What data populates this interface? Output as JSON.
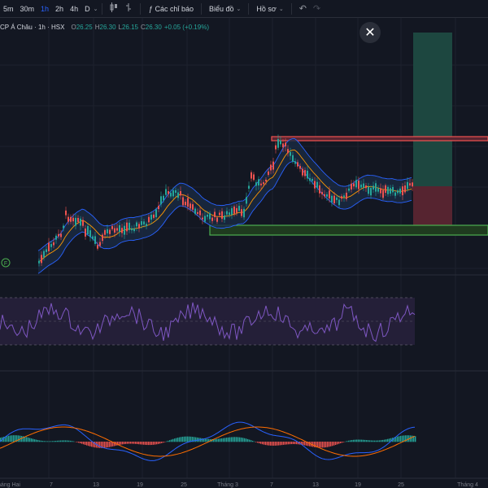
{
  "toolbar": {
    "timeframes": [
      "5m",
      "30m",
      "1h",
      "2h",
      "4h",
      "D"
    ],
    "active_timeframe": "1h",
    "indicators_label": "Các chỉ báo",
    "chart_type_label": "Biểu đồ",
    "profile_label": "Hồ sơ",
    "icons": [
      "candle-style-icon",
      "bar-style-icon",
      "indicators-icon",
      "undo-icon",
      "redo-icon"
    ]
  },
  "legend": {
    "symbol": "CP Á Châu · 1h · HSX",
    "open_key": "O",
    "open": "26.25",
    "high_key": "H",
    "high": "26.30",
    "low_key": "L",
    "low": "26.15",
    "close_key": "C",
    "close": "26.30",
    "change": "+0.05 (+0.19%)"
  },
  "flag_marker": "F",
  "close_icon": "close-icon",
  "x_axis_labels": [
    "tháng Hai",
    "7",
    "13",
    "19",
    "25",
    "Tháng 3",
    "7",
    "13",
    "19",
    "25",
    "Tháng 4"
  ],
  "colors": {
    "up": "#26a69a",
    "down": "#ef5350",
    "bb": "#2962ff",
    "ma": "#ff9800",
    "rsi": "#7e57c2",
    "rsi_bg": "#2a2440",
    "macd": "#2962ff",
    "signal": "#ff6d00",
    "target": "#1e4d45",
    "stop": "#5b2230"
  }
}
